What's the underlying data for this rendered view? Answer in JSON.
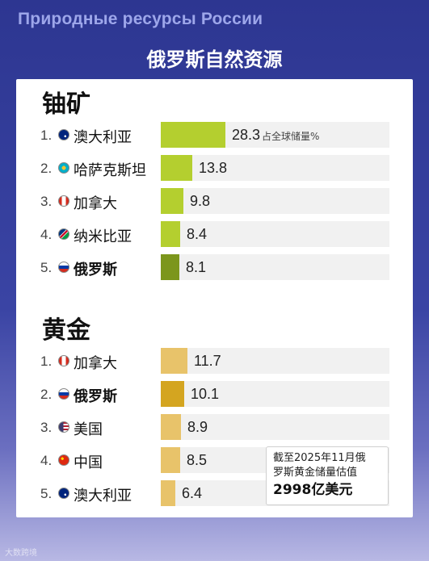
{
  "header": {
    "title_ru": "Природные ресурсы России",
    "title_zh": "俄罗斯自然资源"
  },
  "chart_data": [
    {
      "type": "bar",
      "orientation": "horizontal",
      "title": "铀矿",
      "categories": [
        "澳大利亚",
        "哈萨克斯坦",
        "加拿大",
        "纳米比亚",
        "俄罗斯"
      ],
      "ranks": [
        "1.",
        "2.",
        "3.",
        "4.",
        "5."
      ],
      "values": [
        28.3,
        13.8,
        9.8,
        8.4,
        8.1
      ],
      "value_labels": [
        "28.3",
        "13.8",
        "9.8",
        "8.4",
        "8.1"
      ],
      "unit_label": "占全球储量%",
      "xlim": [
        0,
        100
      ],
      "bar_color": "#b4cf2f",
      "highlight_category": "俄罗斯",
      "highlight_color": "#7c961c",
      "track_color": "#f1f1f1"
    },
    {
      "type": "bar",
      "orientation": "horizontal",
      "title": "黄金",
      "categories": [
        "加拿大",
        "俄罗斯",
        "美国",
        "中国",
        "澳大利亚"
      ],
      "ranks": [
        "1.",
        "2.",
        "3.",
        "4.",
        "5."
      ],
      "values": [
        11.7,
        10.1,
        8.9,
        8.5,
        6.4
      ],
      "value_labels": [
        "11.7",
        "10.1",
        "8.9",
        "8.5",
        "6.4"
      ],
      "xlim": [
        0,
        100
      ],
      "bar_color": "#e8c36a",
      "highlight_category": "俄罗斯",
      "highlight_color": "#d4a520",
      "track_color": "#f1f1f1"
    }
  ],
  "flags": {
    "澳大利亚": "australia-flag-icon",
    "哈萨克斯坦": "kazakhstan-flag-icon",
    "加拿大": "canada-flag-icon",
    "纳米比亚": "namibia-flag-icon",
    "俄罗斯": "russia-flag-icon",
    "美国": "usa-flag-icon",
    "中国": "china-flag-icon"
  },
  "callout": {
    "line1": "截至2025年11月俄",
    "line2": "罗斯黄金储量估值",
    "line3": "2998亿美元"
  },
  "watermark": "大数跨境"
}
